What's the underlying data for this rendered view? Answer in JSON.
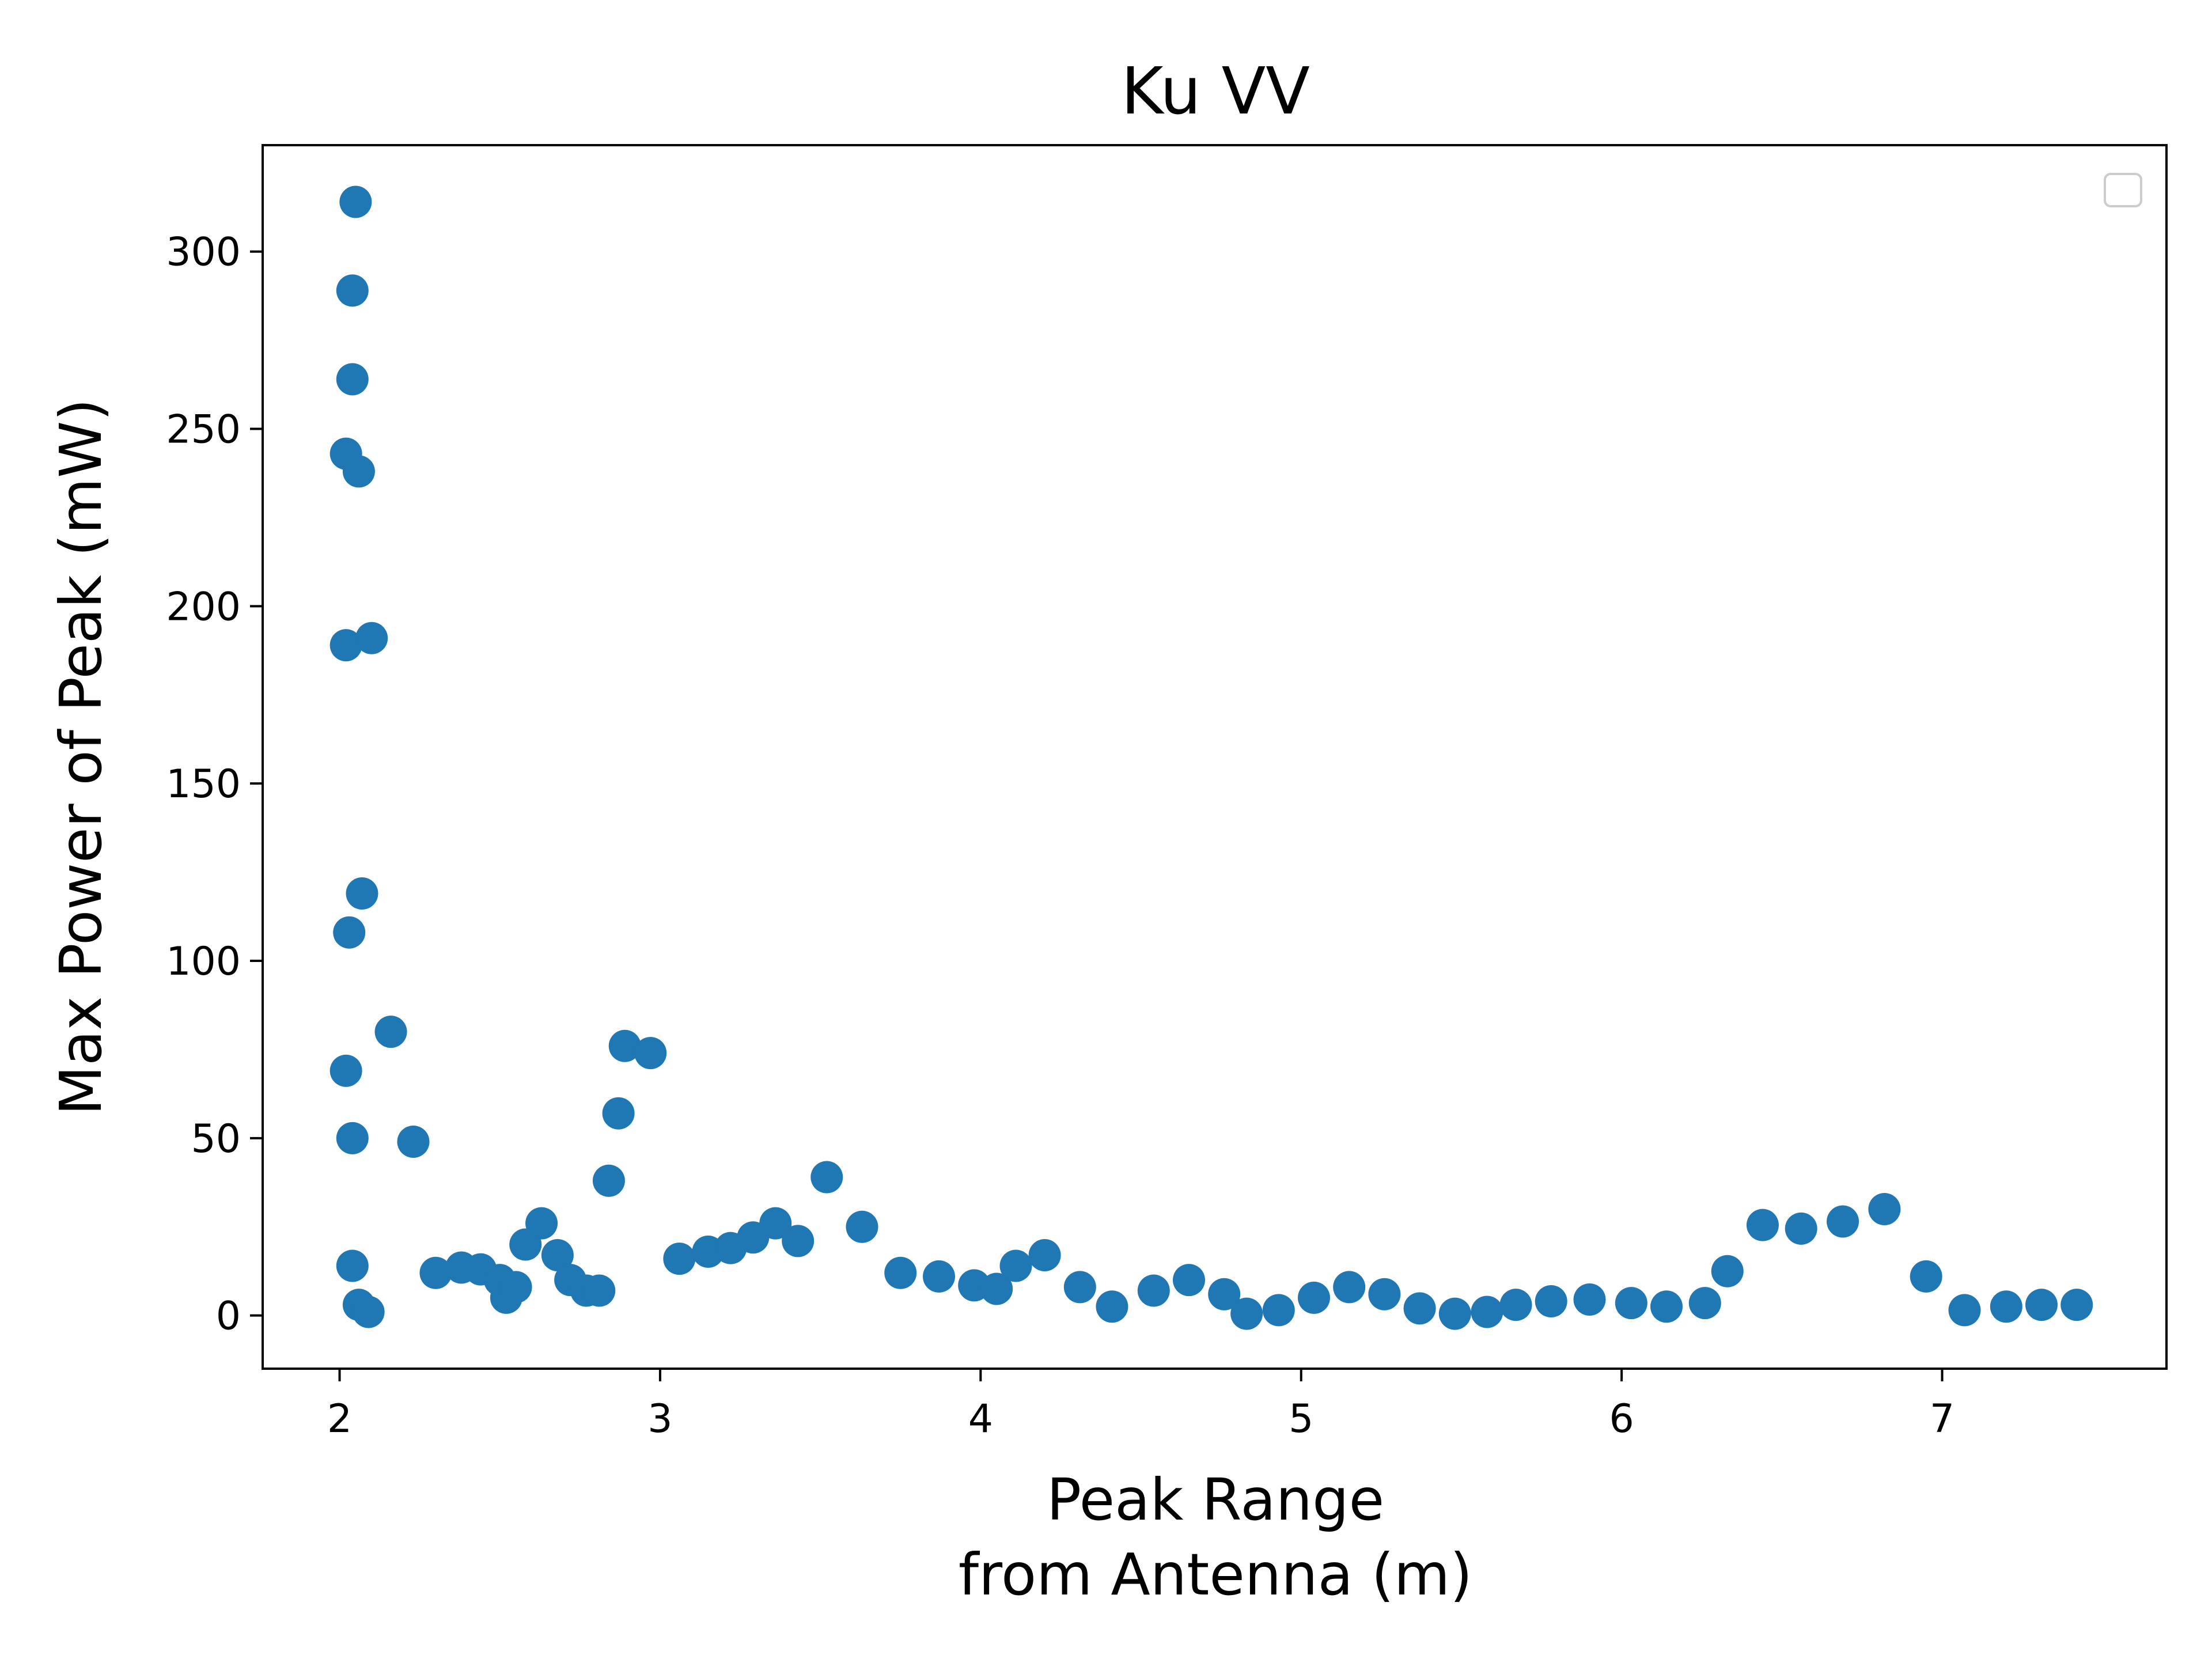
{
  "chart_data": {
    "type": "scatter",
    "title": "Ku VV",
    "xlabel_lines": [
      "Peak Range",
      "from Antenna (m)"
    ],
    "ylabel": "Max Power of Peak (mW)",
    "xlim": [
      1.76,
      7.7
    ],
    "ylim": [
      -15,
      330
    ],
    "xticks": [
      2,
      3,
      4,
      5,
      6,
      7
    ],
    "yticks": [
      0,
      50,
      100,
      150,
      200,
      250,
      300
    ],
    "xtick_labels": [
      "2",
      "3",
      "4",
      "5",
      "6",
      "7"
    ],
    "ytick_labels": [
      "0",
      "50",
      "100",
      "150",
      "200",
      "250",
      "300"
    ],
    "legend": "top-right, empty",
    "grid": false,
    "marker_color": "#1f77b4",
    "series": [
      {
        "points": [
          [
            2.05,
            314
          ],
          [
            2.04,
            289
          ],
          [
            2.04,
            264
          ],
          [
            2.02,
            243
          ],
          [
            2.06,
            238
          ],
          [
            2.02,
            189
          ],
          [
            2.1,
            191
          ],
          [
            2.07,
            119
          ],
          [
            2.03,
            108
          ],
          [
            2.02,
            69
          ],
          [
            2.04,
            50
          ],
          [
            2.04,
            14
          ],
          [
            2.06,
            3
          ],
          [
            2.09,
            1
          ],
          [
            2.16,
            80
          ],
          [
            2.23,
            49
          ],
          [
            2.3,
            12
          ],
          [
            2.38,
            13.5
          ],
          [
            2.44,
            13
          ],
          [
            2.5,
            10
          ],
          [
            2.52,
            5
          ],
          [
            2.55,
            8
          ],
          [
            2.58,
            20
          ],
          [
            2.63,
            26
          ],
          [
            2.68,
            17
          ],
          [
            2.72,
            10
          ],
          [
            2.77,
            7
          ],
          [
            2.81,
            7
          ],
          [
            2.84,
            38
          ],
          [
            2.87,
            57
          ],
          [
            2.89,
            76
          ],
          [
            2.97,
            74
          ],
          [
            3.06,
            16
          ],
          [
            3.15,
            18
          ],
          [
            3.22,
            19
          ],
          [
            3.29,
            22
          ],
          [
            3.36,
            26
          ],
          [
            3.43,
            21
          ],
          [
            3.52,
            39
          ],
          [
            3.63,
            25
          ],
          [
            3.75,
            12
          ],
          [
            3.87,
            11
          ],
          [
            3.98,
            8.5
          ],
          [
            4.05,
            7.5
          ],
          [
            4.11,
            14
          ],
          [
            4.2,
            17
          ],
          [
            4.31,
            8
          ],
          [
            4.41,
            2.5
          ],
          [
            4.54,
            7
          ],
          [
            4.65,
            10
          ],
          [
            4.76,
            6
          ],
          [
            4.83,
            0.5
          ],
          [
            4.93,
            1.5
          ],
          [
            5.04,
            5
          ],
          [
            5.15,
            8
          ],
          [
            5.26,
            6
          ],
          [
            5.37,
            2
          ],
          [
            5.48,
            0.5
          ],
          [
            5.58,
            1
          ],
          [
            5.67,
            3
          ],
          [
            5.78,
            4
          ],
          [
            5.9,
            4.5
          ],
          [
            6.03,
            3.5
          ],
          [
            6.14,
            2.5
          ],
          [
            6.26,
            3.5
          ],
          [
            6.33,
            12.5
          ],
          [
            6.44,
            25.5
          ],
          [
            6.56,
            24.5
          ],
          [
            6.69,
            26.5
          ],
          [
            6.82,
            30
          ],
          [
            6.95,
            11
          ],
          [
            7.07,
            1.5
          ],
          [
            7.2,
            2.5
          ],
          [
            7.31,
            3
          ],
          [
            7.42,
            3
          ]
        ]
      }
    ]
  }
}
